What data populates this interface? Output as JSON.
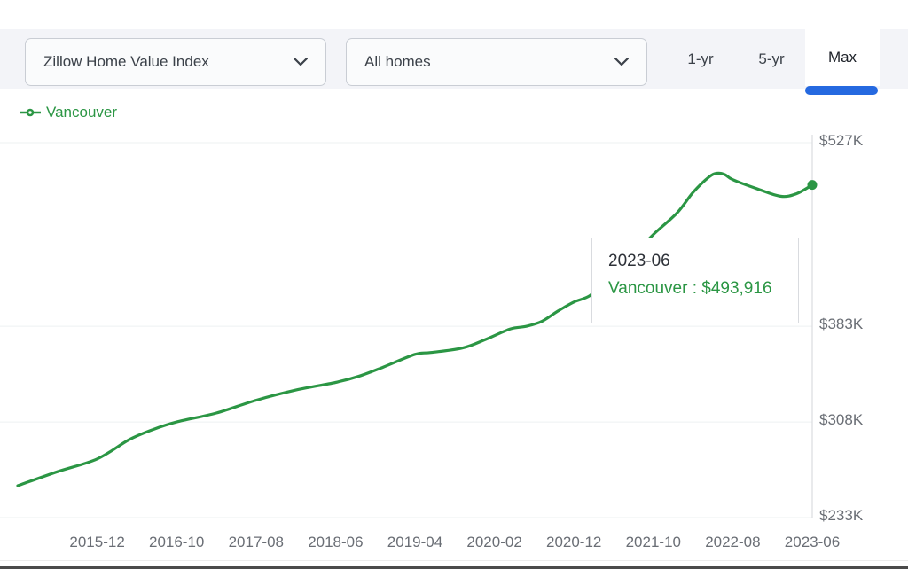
{
  "toolbar": {
    "metric_dropdown": {
      "value": "Zillow Home Value Index"
    },
    "home_type_dropdown": {
      "value": "All homes"
    },
    "range_buttons": [
      {
        "label": "1-yr",
        "active": false
      },
      {
        "label": "5-yr",
        "active": false
      },
      {
        "label": "Max",
        "active": true
      }
    ],
    "active_indicator_color": "#2569e0"
  },
  "legend": {
    "label": "Vancouver",
    "color": "#2b9644"
  },
  "tooltip": {
    "date": "2023-06",
    "series": "Vancouver",
    "value": "$493,916",
    "text": "Vancouver : $493,916"
  },
  "colors": {
    "line_green": "#2b9644",
    "toolbar_bg": "#f3f4f8",
    "active_tab_blue": "#2569e0",
    "tick_text": "#6a6e75",
    "gridline": "#eef0f2",
    "axis_line": "#d3d6da"
  },
  "chart_data": {
    "type": "line",
    "title": "",
    "xlabel": "",
    "ylabel": "",
    "grid": true,
    "legend_position": "top-left",
    "x_axis": {
      "start": "2015-02",
      "end": "2023-06",
      "ticks": [
        "2015-12",
        "2016-10",
        "2017-08",
        "2018-06",
        "2019-04",
        "2020-02",
        "2020-12",
        "2021-10",
        "2022-08",
        "2023-06"
      ]
    },
    "y_axis": {
      "side": "right",
      "lim": [
        233000,
        527000
      ],
      "ticks": [
        {
          "label": "$527K",
          "value": 527000
        },
        {
          "label": "$383K",
          "value": 383000
        },
        {
          "label": "$308K",
          "value": 308000
        },
        {
          "label": "$233K",
          "value": 233000
        }
      ]
    },
    "series": [
      {
        "name": "Vancouver",
        "color": "#2b9644",
        "end_marker": true,
        "points": [
          [
            "2015-02",
            258000
          ],
          [
            "2015-07",
            269000
          ],
          [
            "2015-12",
            279000
          ],
          [
            "2016-04",
            294000
          ],
          [
            "2016-07",
            302000
          ],
          [
            "2016-10",
            308000
          ],
          [
            "2017-03",
            315000
          ],
          [
            "2017-08",
            325000
          ],
          [
            "2018-01",
            333000
          ],
          [
            "2018-06",
            339000
          ],
          [
            "2018-09",
            344000
          ],
          [
            "2018-12",
            351000
          ],
          [
            "2019-04",
            361000
          ],
          [
            "2019-06",
            362500
          ],
          [
            "2019-10",
            366000
          ],
          [
            "2020-01",
            373000
          ],
          [
            "2020-04",
            381000
          ],
          [
            "2020-06",
            383000
          ],
          [
            "2020-08",
            387000
          ],
          [
            "2020-10",
            395000
          ],
          [
            "2020-12",
            402000
          ],
          [
            "2021-02",
            407000
          ],
          [
            "2021-04",
            418000
          ],
          [
            "2021-06",
            430000
          ],
          [
            "2021-08",
            442000
          ],
          [
            "2021-10",
            455000
          ],
          [
            "2022-01",
            472000
          ],
          [
            "2022-03",
            488000
          ],
          [
            "2022-05",
            500000
          ],
          [
            "2022-06",
            503000
          ],
          [
            "2022-07",
            502000
          ],
          [
            "2022-08",
            498000
          ],
          [
            "2022-11",
            491000
          ],
          [
            "2023-02",
            485000
          ],
          [
            "2023-04",
            487000
          ],
          [
            "2023-06",
            493916
          ]
        ]
      }
    ]
  }
}
